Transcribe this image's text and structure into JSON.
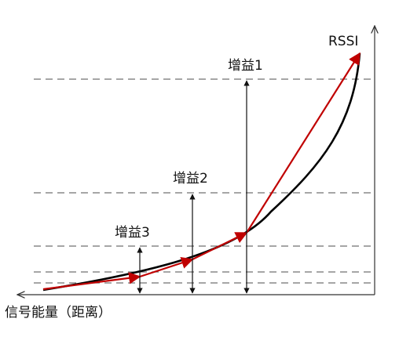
{
  "axes": {
    "y_label": "RSSI",
    "x_label": "信号能量（距离）"
  },
  "gains": [
    {
      "label": "增益1"
    },
    {
      "label": "增益2"
    },
    {
      "label": "增益3"
    }
  ],
  "colors": {
    "curve": "#000000",
    "approximation": "#c00000",
    "dashed": "#707070",
    "axis": "#333333"
  }
}
